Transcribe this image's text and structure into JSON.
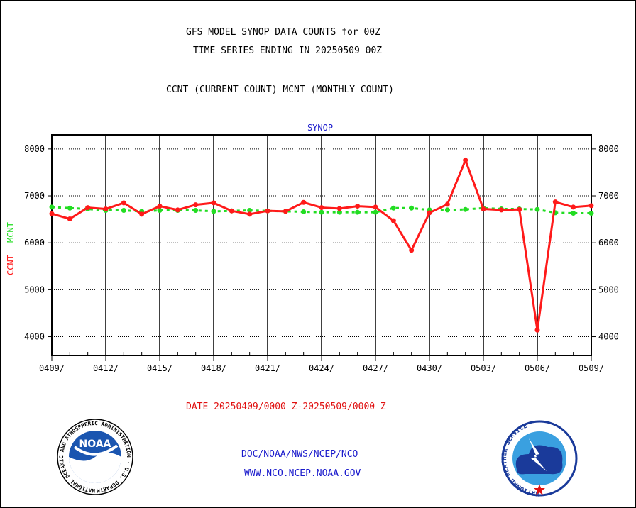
{
  "header": {
    "line1": "GFS MODEL SYNOP DATA COUNTS for 00Z",
    "line2": "TIME SERIES ENDING IN 20250509 00Z",
    "line3": "CCNT (CURRENT COUNT) MCNT (MONTHLY COUNT)"
  },
  "footer": {
    "date_range": "DATE 20250409/0000 Z-20250509/0000 Z",
    "org": "DOC/NOAA/NWS/NCEP/NCO",
    "url": "WWW.NCO.NCEP.NOAA.GOV"
  },
  "logos": {
    "left_text": "NOAA",
    "left_ring": "NATIONAL OCEANIC AND ATMOSPHERIC ADMINISTRATION · U.S. DEPARTMENT OF COMMERCE",
    "right_ring": "NATIONAL WEATHER SERVICE"
  },
  "colors": {
    "ccnt": "#ff1a1a",
    "mcnt": "#22dd22",
    "footer_blue": "#1a1acc",
    "date_red": "#e01010"
  },
  "chart_data": {
    "type": "line",
    "title": "SYNOP",
    "ylabel_ccnt": "CCNT",
    "ylabel_mcnt": "MCNT",
    "ylim": [
      3600,
      8300
    ],
    "yticks": [
      4000,
      5000,
      6000,
      7000,
      8000
    ],
    "x_tick_labels": [
      "0409/",
      "0412/",
      "0415/",
      "0418/",
      "0421/",
      "0424/",
      "0427/",
      "0430/",
      "0503/",
      "0506/",
      "0509/"
    ],
    "grid": true,
    "x": [
      "0409",
      "0410",
      "0411",
      "0412",
      "0413",
      "0414",
      "0415",
      "0416",
      "0417",
      "0418",
      "0419",
      "0420",
      "0421",
      "0422",
      "0423",
      "0424",
      "0425",
      "0426",
      "0427",
      "0428",
      "0429",
      "0430",
      "0501",
      "0502",
      "0503",
      "0504",
      "0505",
      "0506",
      "0507",
      "0508",
      "0509"
    ],
    "series": [
      {
        "name": "CCNT",
        "values": [
          6620,
          6510,
          6750,
          6720,
          6850,
          6610,
          6780,
          6700,
          6810,
          6850,
          6680,
          6610,
          6680,
          6670,
          6860,
          6750,
          6730,
          6780,
          6760,
          6470,
          5840,
          6640,
          6820,
          7760,
          6720,
          6700,
          6710,
          4140,
          6870,
          6760,
          6790
        ]
      },
      {
        "name": "MCNT",
        "values": [
          6760,
          6740,
          6720,
          6690,
          6690,
          6670,
          6690,
          6690,
          6690,
          6670,
          6680,
          6690,
          6680,
          6670,
          6660,
          6650,
          6650,
          6650,
          6650,
          6740,
          6740,
          6700,
          6700,
          6710,
          6740,
          6720,
          6720,
          6710,
          6640,
          6630,
          6630
        ]
      }
    ]
  }
}
